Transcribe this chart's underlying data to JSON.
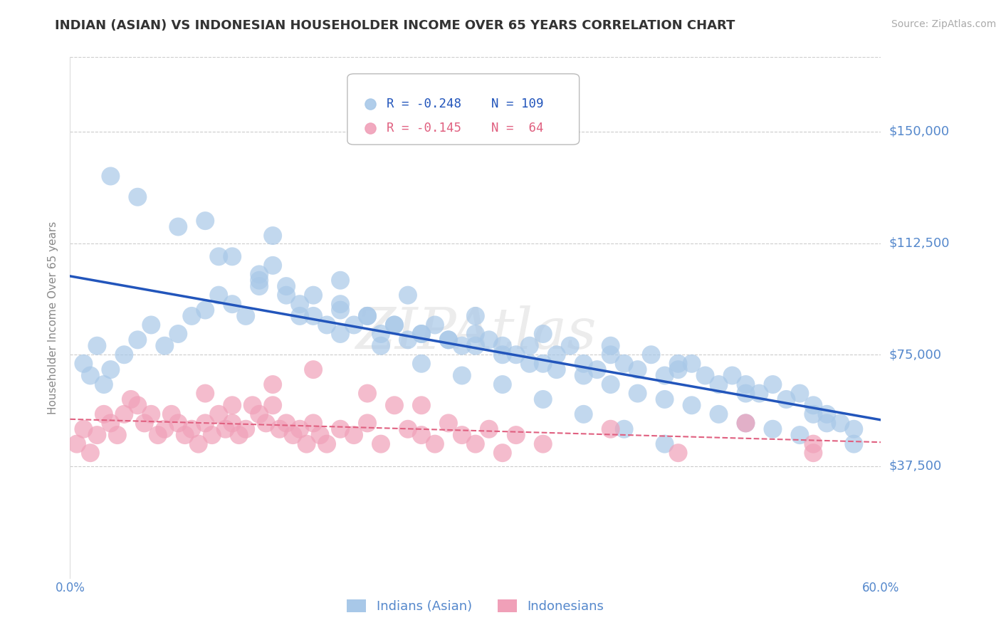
{
  "title": "INDIAN (ASIAN) VS INDONESIAN HOUSEHOLDER INCOME OVER 65 YEARS CORRELATION CHART",
  "source_text": "Source: ZipAtlas.com",
  "ylabel": "Householder Income Over 65 years",
  "xlim": [
    0.0,
    0.6
  ],
  "ylim": [
    0,
    175000
  ],
  "yticks": [
    37500,
    75000,
    112500,
    150000
  ],
  "ytick_labels": [
    "$37,500",
    "$75,000",
    "$112,500",
    "$150,000"
  ],
  "xtick_labels": [
    "0.0%",
    "",
    "",
    "",
    "",
    "",
    "60.0%"
  ],
  "watermark": "ZIPAtlas",
  "R_indian": -0.248,
  "N_indian": 109,
  "R_indonesian": -0.145,
  "N_indonesian": 64,
  "indian_color": "#A8C8E8",
  "indonesian_color": "#F0A0B8",
  "trend_indian_color": "#2255BB",
  "trend_indonesian_color": "#E06080",
  "background_color": "#FFFFFF",
  "grid_color": "#CCCCCC",
  "title_color": "#333333",
  "axis_label_color": "#5588CC",
  "legend_r_color": "#2255BB",
  "legend_r2_color": "#E06080",
  "indian_x": [
    0.01,
    0.015,
    0.02,
    0.025,
    0.03,
    0.04,
    0.05,
    0.06,
    0.07,
    0.08,
    0.09,
    0.1,
    0.11,
    0.12,
    0.13,
    0.14,
    0.15,
    0.16,
    0.17,
    0.18,
    0.19,
    0.2,
    0.21,
    0.22,
    0.23,
    0.24,
    0.25,
    0.26,
    0.27,
    0.28,
    0.29,
    0.3,
    0.31,
    0.32,
    0.33,
    0.34,
    0.35,
    0.36,
    0.37,
    0.38,
    0.39,
    0.4,
    0.41,
    0.42,
    0.43,
    0.44,
    0.45,
    0.46,
    0.47,
    0.48,
    0.49,
    0.5,
    0.51,
    0.52,
    0.53,
    0.54,
    0.55,
    0.56,
    0.57,
    0.58,
    0.12,
    0.14,
    0.16,
    0.18,
    0.2,
    0.22,
    0.24,
    0.26,
    0.28,
    0.3,
    0.32,
    0.34,
    0.36,
    0.38,
    0.4,
    0.42,
    0.44,
    0.46,
    0.48,
    0.5,
    0.52,
    0.54,
    0.56,
    0.58,
    0.1,
    0.15,
    0.2,
    0.25,
    0.3,
    0.35,
    0.4,
    0.45,
    0.5,
    0.55,
    0.03,
    0.05,
    0.08,
    0.11,
    0.14,
    0.17,
    0.2,
    0.23,
    0.26,
    0.29,
    0.32,
    0.35,
    0.38,
    0.41,
    0.44
  ],
  "indian_y": [
    72000,
    68000,
    78000,
    65000,
    70000,
    75000,
    80000,
    85000,
    78000,
    82000,
    88000,
    90000,
    95000,
    92000,
    88000,
    100000,
    105000,
    95000,
    92000,
    88000,
    85000,
    90000,
    85000,
    88000,
    82000,
    85000,
    80000,
    82000,
    85000,
    80000,
    78000,
    82000,
    80000,
    78000,
    75000,
    78000,
    72000,
    75000,
    78000,
    72000,
    70000,
    75000,
    72000,
    70000,
    75000,
    68000,
    70000,
    72000,
    68000,
    65000,
    68000,
    65000,
    62000,
    65000,
    60000,
    62000,
    58000,
    55000,
    52000,
    50000,
    108000,
    102000,
    98000,
    95000,
    92000,
    88000,
    85000,
    82000,
    80000,
    78000,
    75000,
    72000,
    70000,
    68000,
    65000,
    62000,
    60000,
    58000,
    55000,
    52000,
    50000,
    48000,
    52000,
    45000,
    120000,
    115000,
    100000,
    95000,
    88000,
    82000,
    78000,
    72000,
    62000,
    55000,
    135000,
    128000,
    118000,
    108000,
    98000,
    88000,
    82000,
    78000,
    72000,
    68000,
    65000,
    60000,
    55000,
    50000,
    45000
  ],
  "indonesian_x": [
    0.005,
    0.01,
    0.015,
    0.02,
    0.025,
    0.03,
    0.035,
    0.04,
    0.045,
    0.05,
    0.055,
    0.06,
    0.065,
    0.07,
    0.075,
    0.08,
    0.085,
    0.09,
    0.095,
    0.1,
    0.105,
    0.11,
    0.115,
    0.12,
    0.125,
    0.13,
    0.135,
    0.14,
    0.145,
    0.15,
    0.155,
    0.16,
    0.165,
    0.17,
    0.175,
    0.18,
    0.185,
    0.19,
    0.2,
    0.21,
    0.22,
    0.23,
    0.24,
    0.25,
    0.26,
    0.27,
    0.28,
    0.29,
    0.3,
    0.31,
    0.32,
    0.33,
    0.35,
    0.4,
    0.45,
    0.5,
    0.55,
    0.1,
    0.12,
    0.15,
    0.18,
    0.22,
    0.26,
    0.55
  ],
  "indonesian_y": [
    45000,
    50000,
    42000,
    48000,
    55000,
    52000,
    48000,
    55000,
    60000,
    58000,
    52000,
    55000,
    48000,
    50000,
    55000,
    52000,
    48000,
    50000,
    45000,
    52000,
    48000,
    55000,
    50000,
    52000,
    48000,
    50000,
    58000,
    55000,
    52000,
    58000,
    50000,
    52000,
    48000,
    50000,
    45000,
    52000,
    48000,
    45000,
    50000,
    48000,
    52000,
    45000,
    58000,
    50000,
    48000,
    45000,
    52000,
    48000,
    45000,
    50000,
    42000,
    48000,
    45000,
    50000,
    42000,
    52000,
    45000,
    62000,
    58000,
    65000,
    70000,
    62000,
    58000,
    42000
  ]
}
